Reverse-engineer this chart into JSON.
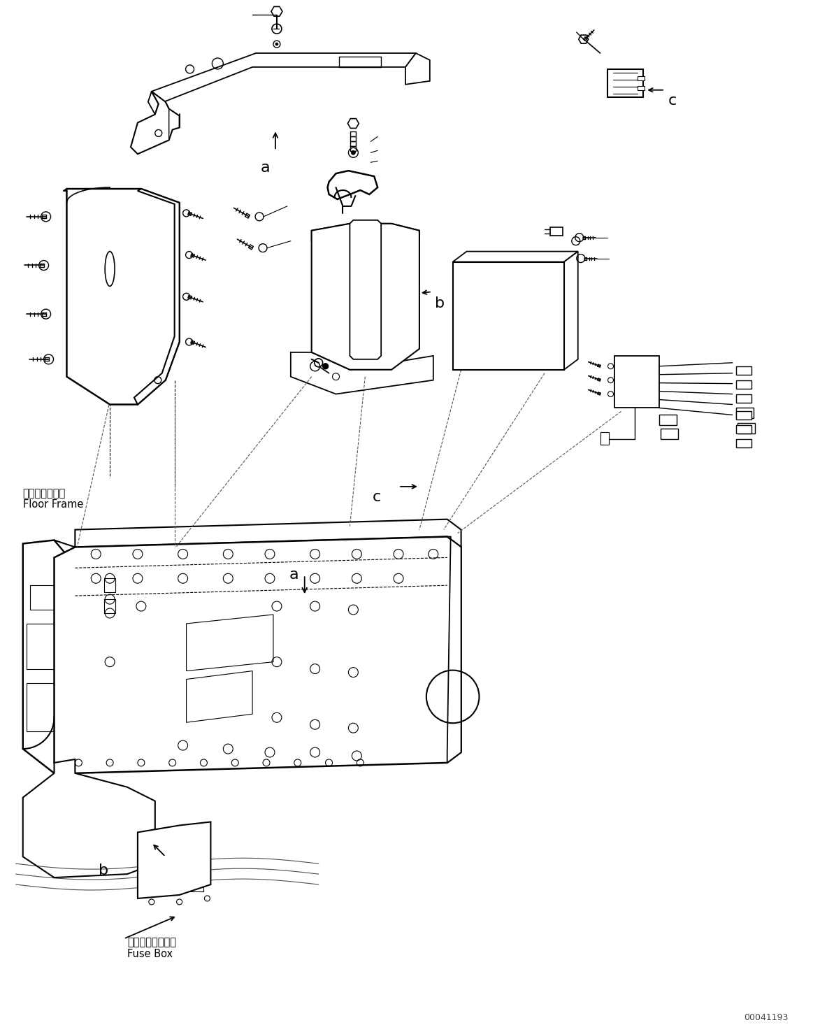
{
  "background_color": "#ffffff",
  "fig_width": 11.63,
  "fig_height": 14.66,
  "dpi": 100,
  "watermark": "00041193",
  "label_floor_frame_jp": "フロアフレーム",
  "label_floor_frame_en": "Floor Frame",
  "label_fuse_box_jp": "フューズボックス",
  "label_fuse_box_en": "Fuse Box",
  "label_a": "a",
  "label_b": "b",
  "label_c": "c"
}
